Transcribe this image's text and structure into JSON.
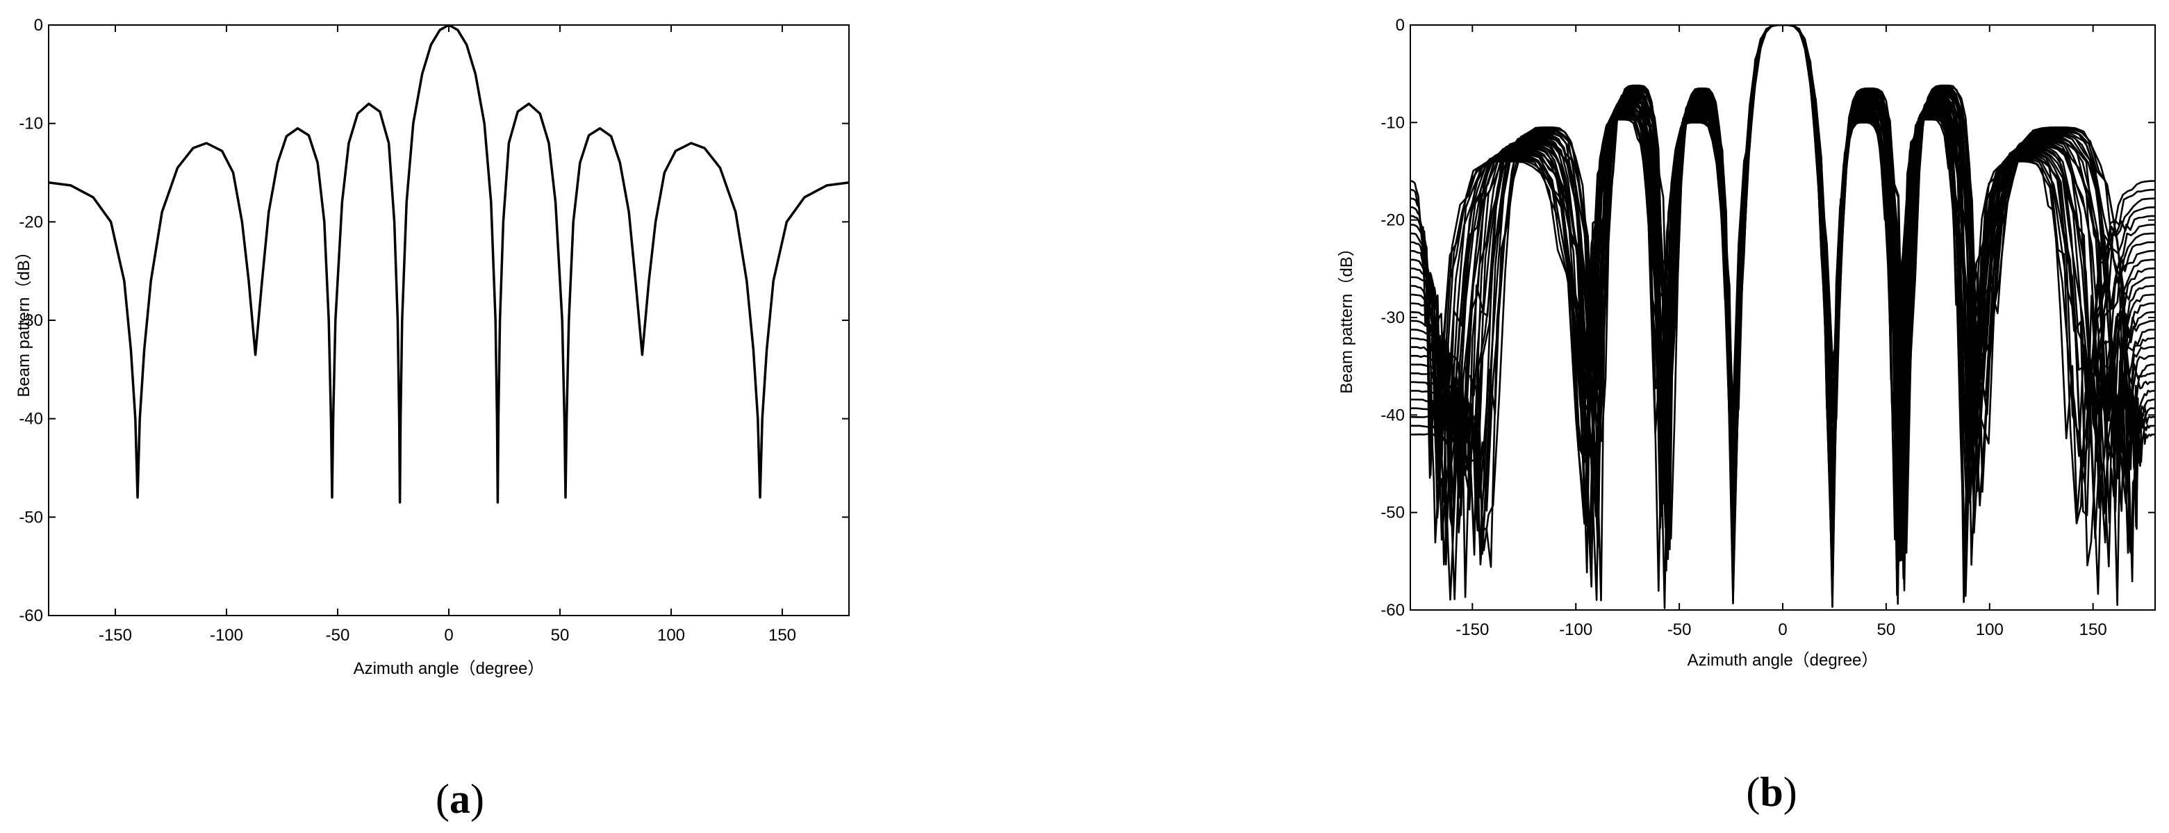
{
  "chart_data": [
    {
      "type": "line",
      "panel_label": {
        "open": "(",
        "letter": "a",
        "close": ")"
      },
      "xlabel": "Azimuth angle（degree）",
      "ylabel": "Beam pattern（dB）",
      "xlim": [
        -180,
        180
      ],
      "ylim": [
        -60,
        0
      ],
      "xticks": [
        -150,
        -100,
        -50,
        0,
        50,
        100,
        150
      ],
      "yticks": [
        0,
        -10,
        -20,
        -30,
        -40,
        -50,
        -60
      ],
      "grid": false,
      "series": [
        {
          "color": "#000000",
          "points": [
            [
              -180,
              -16
            ],
            [
              -170,
              -16.3
            ],
            [
              -160,
              -17.5
            ],
            [
              -152,
              -20
            ],
            [
              -146,
              -26
            ],
            [
              -143,
              -33
            ],
            [
              -141,
              -40
            ],
            [
              -140,
              -48
            ],
            [
              -139,
              -40
            ],
            [
              -137,
              -33
            ],
            [
              -134,
              -26
            ],
            [
              -129,
              -19
            ],
            [
              -122,
              -14.5
            ],
            [
              -115,
              -12.5
            ],
            [
              -109,
              -12
            ],
            [
              -102,
              -12.8
            ],
            [
              -97,
              -15
            ],
            [
              -93,
              -20
            ],
            [
              -90,
              -26
            ],
            [
              -88,
              -31
            ],
            [
              -87,
              -33.5
            ],
            [
              -86,
              -31
            ],
            [
              -84,
              -26
            ],
            [
              -81,
              -19
            ],
            [
              -77,
              -14
            ],
            [
              -73,
              -11.3
            ],
            [
              -68,
              -10.5
            ],
            [
              -63,
              -11.2
            ],
            [
              -59,
              -14
            ],
            [
              -56,
              -20
            ],
            [
              -54,
              -30
            ],
            [
              -53,
              -40
            ],
            [
              -52.5,
              -48
            ],
            [
              -52,
              -40
            ],
            [
              -51,
              -30
            ],
            [
              -48,
              -18
            ],
            [
              -45,
              -12
            ],
            [
              -41,
              -9
            ],
            [
              -36,
              -8
            ],
            [
              -31,
              -8.8
            ],
            [
              -27,
              -12
            ],
            [
              -24.5,
              -20
            ],
            [
              -23,
              -30
            ],
            [
              -22.3,
              -40
            ],
            [
              -22,
              -48.5
            ],
            [
              -21.7,
              -40
            ],
            [
              -21,
              -30
            ],
            [
              -19,
              -18
            ],
            [
              -16,
              -10
            ],
            [
              -12,
              -5
            ],
            [
              -8,
              -2
            ],
            [
              -4,
              -0.5
            ],
            [
              0,
              0
            ],
            [
              4,
              -0.5
            ],
            [
              8,
              -2
            ],
            [
              12,
              -5
            ],
            [
              16,
              -10
            ],
            [
              19,
              -18
            ],
            [
              21,
              -30
            ],
            [
              21.7,
              -40
            ],
            [
              22,
              -48.5
            ],
            [
              22.3,
              -40
            ],
            [
              23,
              -30
            ],
            [
              24.5,
              -20
            ],
            [
              27,
              -12
            ],
            [
              31,
              -8.8
            ],
            [
              36,
              -8
            ],
            [
              41,
              -9
            ],
            [
              45,
              -12
            ],
            [
              48,
              -18
            ],
            [
              51,
              -30
            ],
            [
              52,
              -40
            ],
            [
              52.5,
              -48
            ],
            [
              53,
              -40
            ],
            [
              54,
              -30
            ],
            [
              56,
              -20
            ],
            [
              59,
              -14
            ],
            [
              63,
              -11.2
            ],
            [
              68,
              -10.5
            ],
            [
              73,
              -11.3
            ],
            [
              77,
              -14
            ],
            [
              81,
              -19
            ],
            [
              84,
              -26
            ],
            [
              86,
              -31
            ],
            [
              87,
              -33.5
            ],
            [
              88,
              -31
            ],
            [
              90,
              -26
            ],
            [
              93,
              -20
            ],
            [
              97,
              -15
            ],
            [
              102,
              -12.8
            ],
            [
              109,
              -12
            ],
            [
              115,
              -12.5
            ],
            [
              122,
              -14.5
            ],
            [
              129,
              -19
            ],
            [
              134,
              -26
            ],
            [
              137,
              -33
            ],
            [
              139,
              -40
            ],
            [
              140,
              -48
            ],
            [
              141,
              -40
            ],
            [
              143,
              -33
            ],
            [
              146,
              -26
            ],
            [
              152,
              -20
            ],
            [
              160,
              -17.5
            ],
            [
              170,
              -16.3
            ],
            [
              180,
              -16
            ]
          ]
        }
      ]
    },
    {
      "type": "line",
      "panel_label": {
        "open": "(",
        "letter": "b",
        "close": ")"
      },
      "xlabel": "Azimuth angle（degree）",
      "ylabel": "Beam pattern（dB）",
      "xlim": [
        -180,
        180
      ],
      "ylim": [
        -60,
        0
      ],
      "xticks": [
        -150,
        -100,
        -50,
        0,
        50,
        100,
        150
      ],
      "yticks": [
        0,
        -10,
        -20,
        -30,
        -40,
        -50,
        -60
      ],
      "grid": false,
      "family": {
        "count": 30,
        "main_lobe_peak_db": 0,
        "first_nulls_deg": [
          -24,
          24
        ],
        "sidelobe_peaks": [
          {
            "center_deg": -119,
            "level_db": -10.5
          },
          {
            "center_deg": -75,
            "level_db": -6.2
          },
          {
            "center_deg": -47,
            "level_db": -6.5
          },
          {
            "center_deg": 47,
            "level_db": -6.5
          },
          {
            "center_deg": 75,
            "level_db": -6.2
          },
          {
            "center_deg": 119,
            "level_db": -10.5
          }
        ],
        "null_spread_deg": [
          {
            "center_deg": -155,
            "width": 30
          },
          {
            "center_deg": -92,
            "width": 9
          },
          {
            "center_deg": -57,
            "width": 6
          },
          {
            "center_deg": 57,
            "width": 6
          },
          {
            "center_deg": 92,
            "width": 9
          },
          {
            "center_deg": 155,
            "width": 30
          }
        ],
        "edge_levels_db": [
          -16,
          -42
        ]
      }
    }
  ]
}
